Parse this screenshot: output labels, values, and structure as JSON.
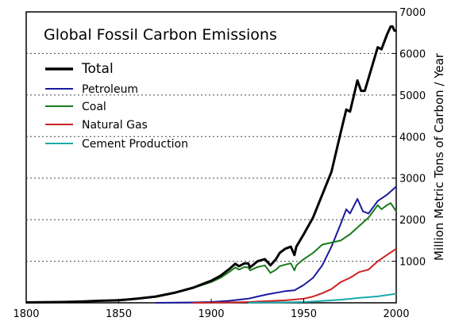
{
  "chart_data": {
    "type": "line",
    "title": "Global Fossil Carbon Emissions",
    "ylabel": "Million Metric Tons of Carbon / Year",
    "xlabel": "",
    "xlim": [
      1800,
      2000
    ],
    "ylim": [
      0,
      7000
    ],
    "x_ticks": [
      "1800",
      "1850",
      "1900",
      "1950",
      "2000"
    ],
    "y_ticks": [
      "1000",
      "2000",
      "3000",
      "4000",
      "5000",
      "6000",
      "7000"
    ],
    "gridlines": "horizontal dotted",
    "legend_position": "top-left",
    "series": [
      {
        "name": "Total",
        "color": "#000000",
        "x": [
          1800,
          1810,
          1820,
          1830,
          1840,
          1850,
          1860,
          1870,
          1880,
          1890,
          1900,
          1905,
          1910,
          1913,
          1915,
          1918,
          1920,
          1921,
          1925,
          1929,
          1932,
          1935,
          1937,
          1940,
          1943,
          1945,
          1946,
          1950,
          1955,
          1960,
          1965,
          1970,
          1973,
          1975,
          1979,
          1981,
          1983,
          1987,
          1990,
          1992,
          1995,
          1997,
          1998,
          1999,
          2000
        ],
        "values": [
          10,
          15,
          20,
          30,
          50,
          60,
          100,
          150,
          240,
          360,
          530,
          650,
          820,
          940,
          880,
          950,
          950,
          850,
          1000,
          1050,
          900,
          1050,
          1200,
          1300,
          1350,
          1150,
          1350,
          1650,
          2050,
          2600,
          3150,
          4100,
          4650,
          4600,
          5350,
          5100,
          5100,
          5700,
          6150,
          6100,
          6450,
          6650,
          6650,
          6550,
          6550
        ]
      },
      {
        "name": "Petroleum",
        "color": "#1a1aa0",
        "x": [
          1870,
          1890,
          1900,
          1910,
          1920,
          1925,
          1930,
          1940,
          1945,
          1950,
          1955,
          1960,
          1965,
          1970,
          1973,
          1975,
          1979,
          1982,
          1985,
          1990,
          1995,
          2000
        ],
        "values": [
          0,
          10,
          20,
          50,
          100,
          150,
          200,
          280,
          300,
          430,
          600,
          900,
          1350,
          1900,
          2250,
          2150,
          2500,
          2200,
          2150,
          2450,
          2600,
          2800
        ]
      },
      {
        "name": "Coal",
        "color": "#1a7a1a",
        "x": [
          1800,
          1820,
          1840,
          1860,
          1870,
          1880,
          1890,
          1900,
          1905,
          1910,
          1913,
          1915,
          1918,
          1920,
          1921,
          1925,
          1929,
          1932,
          1935,
          1937,
          1940,
          1943,
          1945,
          1946,
          1950,
          1955,
          1960,
          1965,
          1970,
          1975,
          1980,
          1985,
          1990,
          1992,
          1995,
          1997,
          2000
        ],
        "values": [
          10,
          20,
          50,
          100,
          140,
          230,
          350,
          500,
          600,
          750,
          850,
          800,
          860,
          850,
          780,
          860,
          900,
          720,
          800,
          880,
          920,
          950,
          780,
          900,
          1050,
          1200,
          1400,
          1450,
          1500,
          1650,
          1850,
          2050,
          2350,
          2250,
          2350,
          2400,
          2200
        ]
      },
      {
        "name": "Natural Gas",
        "color": "#cc2222",
        "x": [
          1890,
          1900,
          1910,
          1920,
          1930,
          1940,
          1950,
          1955,
          1960,
          1965,
          1970,
          1975,
          1980,
          1985,
          1990,
          1995,
          2000
        ],
        "values": [
          0,
          5,
          10,
          20,
          40,
          60,
          100,
          150,
          230,
          330,
          500,
          600,
          740,
          800,
          1000,
          1150,
          1300
        ]
      },
      {
        "name": "Cement Production",
        "color": "#1aaaaa",
        "x": [
          1920,
          1930,
          1940,
          1950,
          1955,
          1960,
          1965,
          1970,
          1975,
          1980,
          1985,
          1990,
          1995,
          2000
        ],
        "values": [
          5,
          8,
          12,
          20,
          30,
          45,
          60,
          75,
          95,
          120,
          135,
          155,
          185,
          220
        ]
      }
    ]
  }
}
